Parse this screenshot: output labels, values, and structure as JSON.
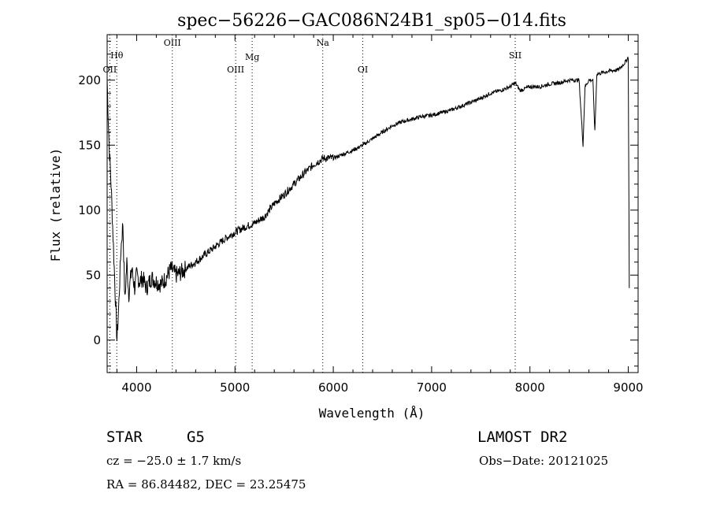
{
  "chart_data": {
    "type": "line",
    "title": "spec−56226−GAC086N24B1_sp05−014.fits",
    "xlabel": "Wavelength (Å)",
    "ylabel": "Flux (relative)",
    "xlim": [
      3700,
      9100
    ],
    "ylim": [
      -25,
      235
    ],
    "xticks": [
      4000,
      5000,
      6000,
      7000,
      8000,
      9000
    ],
    "yticks": [
      0,
      50,
      100,
      150,
      200
    ],
    "x": [
      3700,
      3720,
      3740,
      3760,
      3780,
      3800,
      3820,
      3840,
      3860,
      3880,
      3900,
      3920,
      3950,
      3980,
      4000,
      4030,
      4060,
      4100,
      4150,
      4200,
      4250,
      4300,
      4350,
      4400,
      4450,
      4500,
      4600,
      4700,
      4800,
      4900,
      5000,
      5100,
      5200,
      5300,
      5400,
      5500,
      5600,
      5700,
      5800,
      5900,
      6000,
      6100,
      6200,
      6300,
      6400,
      6500,
      6600,
      6700,
      6800,
      6900,
      7000,
      7100,
      7200,
      7300,
      7400,
      7500,
      7600,
      7700,
      7800,
      7850,
      7900,
      8000,
      8100,
      8200,
      8300,
      8400,
      8500,
      8540,
      8560,
      8600,
      8640,
      8660,
      8680,
      8700,
      8800,
      8900,
      8950,
      8980,
      9000,
      9010
    ],
    "y": [
      200,
      150,
      120,
      80,
      40,
      0,
      30,
      70,
      90,
      30,
      60,
      35,
      55,
      40,
      50,
      45,
      48,
      40,
      48,
      45,
      43,
      48,
      55,
      50,
      52,
      55,
      60,
      66,
      72,
      78,
      83,
      87,
      90,
      95,
      105,
      112,
      120,
      128,
      135,
      140,
      140,
      143,
      146,
      150,
      155,
      160,
      165,
      168,
      170,
      172,
      173,
      175,
      177,
      180,
      183,
      186,
      190,
      192,
      195,
      198,
      192,
      195,
      195,
      197,
      198,
      200,
      200,
      150,
      195,
      200,
      200,
      160,
      205,
      205,
      207,
      208,
      212,
      215,
      218,
      40
    ],
    "lines": [
      {
        "label": "OII",
        "x": 3727
      },
      {
        "label": "Hθ",
        "x": 3798
      },
      {
        "label": "OIII",
        "x": 4363
      },
      {
        "label": "OIII",
        "x": 5007
      },
      {
        "label": "Mg",
        "x": 5175
      },
      {
        "label": "Na",
        "x": 5893
      },
      {
        "label": "OI",
        "x": 6300
      },
      {
        "label": "SII",
        "x": 7850
      }
    ],
    "grid": false
  },
  "info": {
    "class": "STAR",
    "subclass": "G5",
    "survey": "LAMOST DR2",
    "cz": "cz = −25.0 ± 1.7 km/s",
    "obs_date": "Obs−Date: 20121025",
    "coords": "RA =  86.84482, DEC =  23.25475"
  }
}
